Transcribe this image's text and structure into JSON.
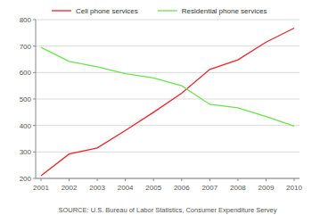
{
  "chart_data": {
    "type": "line",
    "source": "SOURCE: U.S. Bureau of Labor Statistics, Consumer Expenditure Servey",
    "categories": [
      "2001",
      "2002",
      "2003",
      "2004",
      "2005",
      "2006",
      "2007",
      "2008",
      "2009",
      "2010"
    ],
    "series": [
      {
        "name": "Cell phone services",
        "color": "#e8252b",
        "values": [
          210,
          292,
          315,
          381,
          450,
          522,
          612,
          648,
          715,
          768
        ]
      },
      {
        "name": "Residential phone services",
        "color": "#6be24e",
        "values": [
          695,
          642,
          622,
          596,
          580,
          550,
          480,
          467,
          434,
          398
        ]
      }
    ],
    "ylim": [
      200,
      800
    ],
    "yticks": [
      200,
      300,
      400,
      500,
      600,
      700,
      800
    ],
    "grid": true,
    "legend": "top"
  }
}
